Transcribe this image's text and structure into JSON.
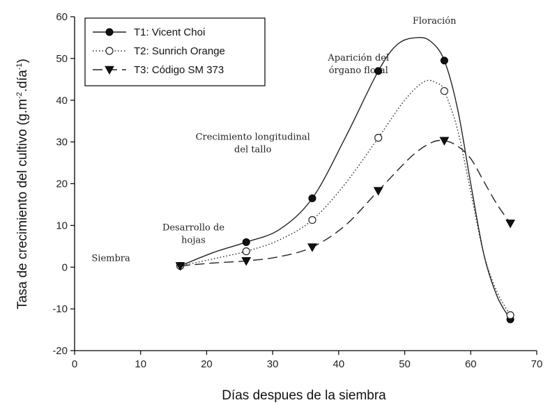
{
  "chart_data": {
    "type": "line",
    "xlabel": "Días despues de la siembra",
    "ylabel": "Tasa de crecimiento del cultivo (g.m",
    "ylabel_sup1": "-2",
    "ylabel_mid": ".día",
    "ylabel_sup2": "-1",
    "ylabel_end": ")",
    "xlim": [
      0,
      70
    ],
    "ylim": [
      -20,
      60
    ],
    "xticks": [
      0,
      10,
      20,
      30,
      40,
      50,
      60,
      70
    ],
    "yticks": [
      -20,
      -10,
      0,
      10,
      20,
      30,
      40,
      50,
      60
    ],
    "grid": false,
    "legend_position": "top-left",
    "series": [
      {
        "name": "T1: Vicent Choi",
        "marker": "filled-circle",
        "line_style": "solid",
        "x": [
          16,
          26,
          36,
          46,
          56,
          66
        ],
        "y": [
          0.3,
          6,
          16.5,
          47,
          49.5,
          -12.5
        ],
        "curve_x": [
          16,
          21,
          26,
          31,
          36,
          41,
          46,
          49,
          52,
          54,
          56,
          58,
          60,
          62,
          64,
          66
        ],
        "curve_y": [
          0.3,
          3.5,
          6,
          9,
          16.5,
          31,
          47,
          53.5,
          55,
          54,
          49.5,
          38,
          20,
          3,
          -7,
          -12.5
        ]
      },
      {
        "name": "T2: Sunrich Orange",
        "marker": "open-circle",
        "line_style": "dotted",
        "x": [
          16,
          26,
          36,
          46,
          56,
          66
        ],
        "y": [
          0.3,
          3.8,
          11.3,
          31,
          42.2,
          -11.5
        ],
        "curve_x": [
          16,
          21,
          26,
          31,
          36,
          41,
          46,
          50,
          53,
          55,
          56,
          58,
          60,
          62,
          64,
          66
        ],
        "curve_y": [
          0.3,
          2,
          3.8,
          6.5,
          11.3,
          20,
          31,
          40,
          44.5,
          44,
          42.2,
          33,
          18,
          3,
          -6,
          -11.5
        ]
      },
      {
        "name": "T3: Código SM 373",
        "marker": "filled-triangle-down",
        "line_style": "dashed",
        "x": [
          16,
          26,
          36,
          46,
          56,
          66
        ],
        "y": [
          0.3,
          1.5,
          4.8,
          18.3,
          30.3,
          10.5
        ],
        "curve_x": [
          16,
          21,
          26,
          31,
          36,
          41,
          46,
          51,
          54,
          56,
          58,
          60,
          62,
          64,
          66
        ],
        "curve_y": [
          0.3,
          1,
          1.5,
          2.5,
          4.8,
          10,
          18.3,
          26.5,
          29.8,
          30.3,
          29,
          26,
          20.5,
          15,
          10.5
        ]
      }
    ],
    "annotations": [
      {
        "lines": [
          "Siembra"
        ],
        "x": 5.5,
        "y": 1.5
      },
      {
        "lines": [
          "Desarrollo de",
          "hojas"
        ],
        "x": 18,
        "y": 8.8
      },
      {
        "lines": [
          "Crecimiento longitudinal",
          "del tallo"
        ],
        "x": 27,
        "y": 30.5
      },
      {
        "lines": [
          "Aparición del",
          "órgano floral"
        ],
        "x": 43,
        "y": 49.5
      },
      {
        "lines": [
          "Floración"
        ],
        "x": 54.5,
        "y": 58.3
      }
    ]
  }
}
